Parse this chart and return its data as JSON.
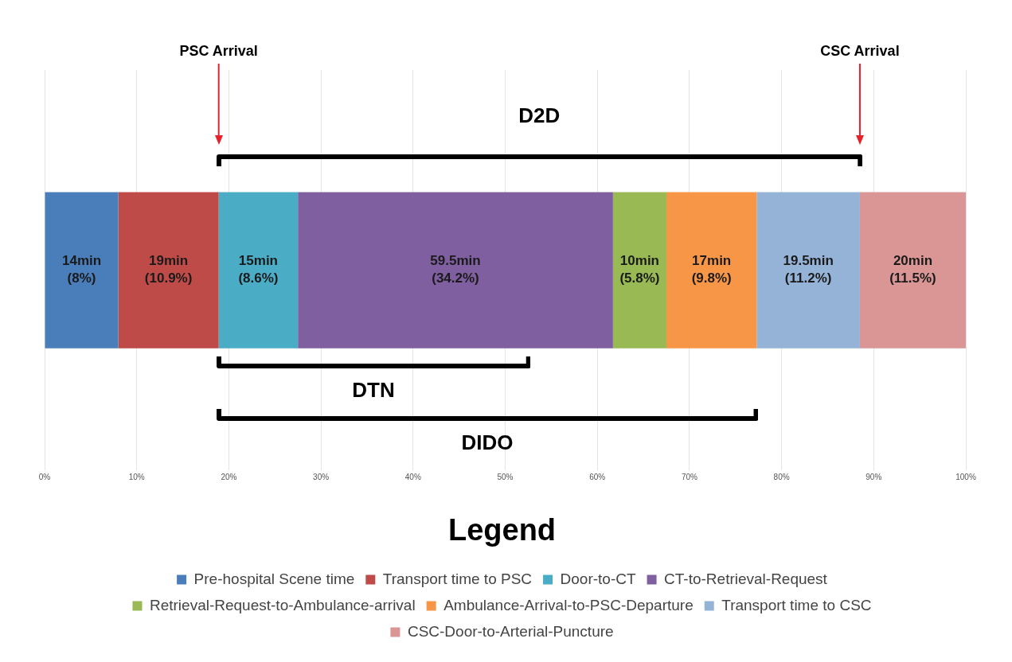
{
  "chart_data": {
    "type": "bar",
    "orientation": "horizontal",
    "stacked": true,
    "categories": [
      null
    ],
    "series": [
      {
        "name": "Pre-hospital Scene time",
        "color": "#4a7ebb",
        "values": [
          8
        ],
        "value_labels": [
          "14min (8%)"
        ]
      },
      {
        "name": "Transport time to PSC",
        "color": "#be4b48",
        "values": [
          10.9
        ],
        "value_labels": [
          "19min (10.9%)"
        ]
      },
      {
        "name": "Door-to-CT",
        "color": "#4bacc6",
        "values": [
          8.6
        ],
        "value_labels": [
          "15min (8.6%)"
        ]
      },
      {
        "name": "CT-to-Retrieval-Request",
        "color": "#7f5fa0",
        "values": [
          34.2
        ],
        "value_labels": [
          "59.5min (34.2%)"
        ]
      },
      {
        "name": "Retrieval-Request-to-Ambulance-arrival",
        "color": "#98b954",
        "values": [
          5.8
        ],
        "value_labels": [
          "10min (5.8%)"
        ]
      },
      {
        "name": "Ambulance-Arrival-to-PSC-Departure",
        "color": "#f79646",
        "values": [
          9.8
        ],
        "value_labels": [
          "17min (9.8%)"
        ]
      },
      {
        "name": "Transport time to CSC",
        "color": "#95b3d7",
        "values": [
          11.2
        ],
        "value_labels": [
          "19.5min (11.2%)"
        ]
      },
      {
        "name": "CSC-Door-to-Arterial-Puncture",
        "color": "#d99694",
        "values": [
          11.5
        ],
        "value_labels": [
          "20min (11.5%)"
        ]
      }
    ],
    "xlim": [
      0,
      100
    ],
    "xticks": [
      {
        "value": 0,
        "label": "0%"
      },
      {
        "value": 10,
        "label": "10%"
      },
      {
        "value": 20,
        "label": "20%"
      },
      {
        "value": 30,
        "label": "30%"
      },
      {
        "value": 40,
        "label": "40%"
      },
      {
        "value": 50,
        "label": "50%"
      },
      {
        "value": 60,
        "label": "60%"
      },
      {
        "value": 70,
        "label": "70%"
      },
      {
        "value": 80,
        "label": "80%"
      },
      {
        "value": 90,
        "label": "90%"
      },
      {
        "value": 100,
        "label": "100%"
      }
    ],
    "grid": "x",
    "tick_labels": "x",
    "legend": "bottom",
    "legend_title": "Legend",
    "ref_lines": [
      {
        "axis": "x",
        "value": 18.9,
        "label": "PSC Arrival",
        "color": "#e8202a"
      },
      {
        "axis": "x",
        "value": 88.5,
        "label": "CSC Arrival",
        "color": "#e8202a"
      }
    ],
    "annotations": [
      "D2D",
      "DTN",
      "DIDO"
    ]
  }
}
